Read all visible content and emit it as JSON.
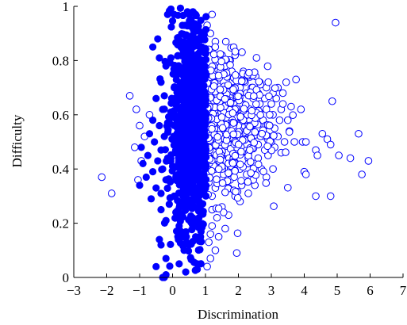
{
  "chart_data": {
    "type": "scatter",
    "title": "",
    "xlabel": "Discrimination",
    "ylabel": "Difficulty",
    "xlim": [
      -3,
      7
    ],
    "ylim": [
      0,
      1
    ],
    "xticks": [
      -3,
      -2,
      -1,
      0,
      1,
      2,
      3,
      4,
      5,
      6,
      7
    ],
    "yticks": [
      0,
      0.2,
      0.4,
      0.6,
      0.8,
      1
    ],
    "grid": false,
    "legend": "none",
    "colors": {
      "filled": "#0000ff",
      "hollow_stroke": "#0000ff",
      "hollow_fill": "#ffffff"
    },
    "series": [
      {
        "marker": "filled-circle",
        "points": [
          [
            -0.15,
            0.97
          ],
          [
            0.05,
            0.97
          ],
          [
            -0.05,
            0.99
          ],
          [
            0.45,
            0.98
          ],
          [
            0.5,
            0.97
          ],
          [
            0.62,
            0.98
          ],
          [
            0.7,
            0.97
          ],
          [
            0.55,
            0.93
          ],
          [
            0.65,
            0.92
          ],
          [
            0.3,
            0.93
          ],
          [
            -0.45,
            0.88
          ],
          [
            -0.6,
            0.85
          ],
          [
            0.25,
            0.85
          ],
          [
            -0.05,
            0.81
          ],
          [
            -0.4,
            0.81
          ],
          [
            -0.2,
            0.78
          ],
          [
            0.1,
            0.75
          ],
          [
            -0.35,
            0.72
          ],
          [
            0.05,
            0.7
          ],
          [
            -0.25,
            0.67
          ],
          [
            -0.5,
            0.66
          ],
          [
            0.1,
            0.64
          ],
          [
            -0.3,
            0.62
          ],
          [
            -0.05,
            0.61
          ],
          [
            0.2,
            0.59
          ],
          [
            -0.6,
            0.58
          ],
          [
            -0.15,
            0.57
          ],
          [
            -0.4,
            0.56
          ],
          [
            0.15,
            0.55
          ],
          [
            -0.7,
            0.53
          ],
          [
            -0.25,
            0.52
          ],
          [
            0.05,
            0.51
          ],
          [
            -0.55,
            0.5
          ],
          [
            -0.95,
            0.48
          ],
          [
            -0.35,
            0.47
          ],
          [
            0.1,
            0.46
          ],
          [
            -0.75,
            0.45
          ],
          [
            -0.15,
            0.44
          ],
          [
            -0.45,
            0.43
          ],
          [
            -0.9,
            0.42
          ],
          [
            0.0,
            0.41
          ],
          [
            -0.3,
            0.4
          ],
          [
            -0.6,
            0.39
          ],
          [
            -0.8,
            0.37
          ],
          [
            -0.2,
            0.36
          ],
          [
            -1.0,
            0.34
          ],
          [
            -0.5,
            0.33
          ],
          [
            -0.35,
            0.31
          ],
          [
            0.05,
            0.3
          ],
          [
            -0.65,
            0.29
          ],
          [
            -0.1,
            0.27
          ],
          [
            -0.35,
            0.25
          ],
          [
            0.1,
            0.24
          ],
          [
            -0.2,
            0.21
          ],
          [
            0.2,
            0.19
          ],
          [
            -0.4,
            0.14
          ],
          [
            -0.35,
            0.12
          ],
          [
            0.3,
            0.15
          ],
          [
            0.35,
            0.1
          ],
          [
            -0.2,
            0.07
          ],
          [
            -0.5,
            0.04
          ],
          [
            0.2,
            0.05
          ],
          [
            -0.2,
            0.01
          ],
          [
            -0.3,
            0.0
          ],
          [
            -0.25,
            0.0
          ],
          [
            0.4,
            0.02
          ],
          [
            0.75,
            0.03
          ],
          [
            0.5,
            0.12
          ],
          [
            0.55,
            0.21
          ],
          [
            0.8,
            0.26
          ],
          [
            0.75,
            0.05
          ],
          [
            0.85,
            0.15
          ]
        ]
      },
      {
        "marker": "open-circle",
        "points": [
          [
            1.2,
            0.97
          ],
          [
            1.05,
            0.93
          ],
          [
            1.15,
            0.9
          ],
          [
            1.3,
            0.87
          ],
          [
            1.5,
            0.82
          ],
          [
            1.75,
            0.8
          ],
          [
            1.9,
            0.82
          ],
          [
            2.55,
            0.81
          ],
          [
            3.75,
            0.73
          ],
          [
            3.45,
            0.72
          ],
          [
            3.2,
            0.7
          ],
          [
            3.35,
            0.68
          ],
          [
            3.9,
            0.62
          ],
          [
            3.6,
            0.63
          ],
          [
            4.85,
            0.65
          ],
          [
            4.95,
            0.94
          ],
          [
            5.65,
            0.53
          ],
          [
            5.95,
            0.43
          ],
          [
            5.75,
            0.38
          ],
          [
            5.4,
            0.44
          ],
          [
            5.05,
            0.45
          ],
          [
            4.7,
            0.51
          ],
          [
            4.55,
            0.53
          ],
          [
            4.8,
            0.49
          ],
          [
            4.35,
            0.47
          ],
          [
            4.4,
            0.45
          ],
          [
            4.0,
            0.39
          ],
          [
            4.05,
            0.38
          ],
          [
            4.35,
            0.3
          ],
          [
            4.8,
            0.3
          ],
          [
            3.95,
            0.5
          ],
          [
            4.05,
            0.5
          ],
          [
            3.7,
            0.5
          ],
          [
            3.55,
            0.54
          ],
          [
            3.5,
            0.58
          ],
          [
            3.1,
            0.55
          ],
          [
            3.2,
            0.52
          ],
          [
            2.9,
            0.45
          ],
          [
            3.05,
            0.4
          ],
          [
            2.85,
            0.37
          ],
          [
            2.5,
            0.34
          ],
          [
            2.3,
            0.31
          ],
          [
            2.05,
            0.28
          ],
          [
            1.7,
            0.23
          ],
          [
            1.5,
            0.26
          ],
          [
            1.2,
            0.19
          ],
          [
            1.1,
            0.13
          ],
          [
            1.3,
            0.1
          ],
          [
            1.6,
            0.18
          ],
          [
            1.55,
            0.24
          ],
          [
            1.95,
            0.09
          ],
          [
            1.15,
            0.07
          ],
          [
            1.05,
            0.04
          ],
          [
            1.4,
            0.15
          ],
          [
            -1.3,
            0.67
          ],
          [
            -1.1,
            0.62
          ],
          [
            -1.0,
            0.56
          ],
          [
            -1.15,
            0.48
          ],
          [
            -0.95,
            0.43
          ],
          [
            -1.05,
            0.36
          ],
          [
            -2.15,
            0.37
          ],
          [
            -1.85,
            0.31
          ],
          [
            -0.7,
            0.6
          ],
          [
            -0.85,
            0.52
          ],
          [
            1.35,
            0.64
          ],
          [
            1.5,
            0.63
          ],
          [
            1.7,
            0.6
          ],
          [
            1.85,
            0.57
          ],
          [
            2.0,
            0.55
          ],
          [
            2.2,
            0.53
          ],
          [
            2.4,
            0.51
          ],
          [
            2.6,
            0.49
          ],
          [
            2.8,
            0.47
          ],
          [
            1.25,
            0.55
          ],
          [
            1.45,
            0.5
          ],
          [
            1.65,
            0.46
          ],
          [
            1.85,
            0.43
          ],
          [
            2.05,
            0.4
          ],
          [
            2.25,
            0.38
          ],
          [
            2.45,
            0.36
          ],
          [
            1.3,
            0.4
          ],
          [
            1.5,
            0.36
          ],
          [
            1.7,
            0.33
          ],
          [
            1.9,
            0.3
          ],
          [
            1.2,
            0.3
          ],
          [
            1.35,
            0.72
          ],
          [
            1.55,
            0.7
          ],
          [
            1.75,
            0.68
          ],
          [
            1.95,
            0.66
          ],
          [
            2.15,
            0.64
          ],
          [
            2.35,
            0.62
          ],
          [
            2.55,
            0.6
          ],
          [
            2.75,
            0.58
          ],
          [
            2.95,
            0.56
          ],
          [
            1.25,
            0.78
          ],
          [
            1.45,
            0.76
          ],
          [
            1.65,
            0.74
          ],
          [
            1.85,
            0.72
          ],
          [
            2.05,
            0.7
          ],
          [
            2.25,
            0.68
          ],
          [
            2.45,
            0.66
          ],
          [
            2.65,
            0.64
          ],
          [
            2.85,
            0.62
          ],
          [
            3.05,
            0.6
          ],
          [
            3.25,
            0.58
          ],
          [
            1.15,
            0.84
          ],
          [
            1.4,
            0.81
          ],
          [
            1.6,
            0.78
          ],
          [
            1.8,
            0.76
          ],
          [
            2.0,
            0.74
          ],
          [
            2.2,
            0.72
          ],
          [
            2.4,
            0.7
          ],
          [
            2.6,
            0.68
          ],
          [
            2.8,
            0.66
          ],
          [
            3.0,
            0.64
          ],
          [
            3.3,
            0.62
          ],
          [
            1.1,
            0.46
          ],
          [
            1.3,
            0.48
          ],
          [
            1.5,
            0.44
          ],
          [
            1.7,
            0.42
          ],
          [
            1.9,
            0.48
          ],
          [
            2.1,
            0.46
          ],
          [
            2.3,
            0.44
          ],
          [
            2.5,
            0.42
          ],
          [
            2.7,
            0.4
          ],
          [
            2.9,
            0.52
          ],
          [
            3.1,
            0.48
          ],
          [
            3.3,
            0.46
          ],
          [
            3.4,
            0.5
          ],
          [
            1.15,
            0.6
          ],
          [
            1.4,
            0.58
          ],
          [
            1.6,
            0.56
          ],
          [
            1.8,
            0.52
          ],
          [
            2.0,
            0.5
          ],
          [
            2.2,
            0.58
          ],
          [
            2.4,
            0.56
          ],
          [
            2.6,
            0.54
          ],
          [
            2.8,
            0.52
          ],
          [
            3.0,
            0.5
          ],
          [
            1.25,
            0.68
          ],
          [
            1.55,
            0.66
          ],
          [
            1.75,
            0.64
          ],
          [
            1.95,
            0.62
          ],
          [
            2.15,
            0.6
          ],
          [
            2.35,
            0.58
          ],
          [
            2.55,
            0.56
          ],
          [
            2.75,
            0.54
          ],
          [
            2.95,
            0.6
          ],
          [
            3.15,
            0.66
          ],
          [
            3.35,
            0.64
          ],
          [
            2.65,
            0.72
          ],
          [
            2.85,
            0.7
          ],
          [
            3.05,
            0.68
          ],
          [
            2.15,
            0.76
          ],
          [
            2.35,
            0.74
          ],
          [
            1.1,
            0.35
          ],
          [
            1.3,
            0.33
          ],
          [
            1.55,
            0.38
          ],
          [
            1.75,
            0.36
          ],
          [
            2.1,
            0.34
          ],
          [
            2.3,
            0.42
          ],
          [
            2.6,
            0.44
          ],
          [
            1.2,
            0.25
          ],
          [
            1.35,
            0.22
          ],
          [
            1.15,
            0.16
          ]
        ]
      }
    ]
  },
  "filled_cloud": {
    "count": 900,
    "x_center": 0.55,
    "x_spread": 0.28,
    "y_center": 0.55,
    "y_spread": 0.2
  }
}
